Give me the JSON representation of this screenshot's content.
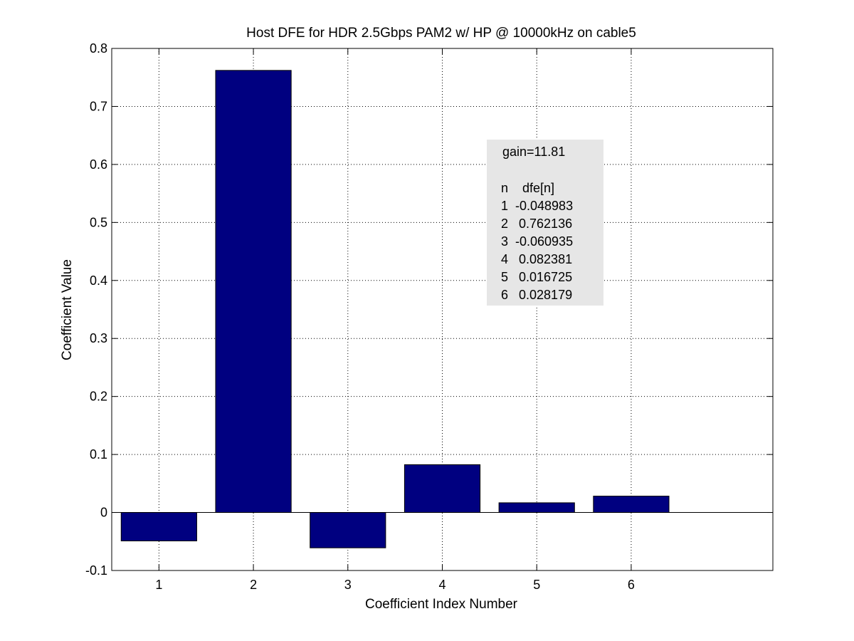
{
  "chart_data": {
    "type": "bar",
    "title": "Host DFE for HDR 2.5Gbps PAM2 w/ HP @ 10000kHz on cable5",
    "xlabel": "Coefficient Index Number",
    "ylabel": "Coefficient Value",
    "categories": [
      "1",
      "2",
      "3",
      "4",
      "5",
      "6"
    ],
    "values": [
      -0.048983,
      0.762136,
      -0.060935,
      0.082381,
      0.016725,
      0.028179
    ],
    "xlim": [
      0.5,
      7.5
    ],
    "ylim": [
      -0.1,
      0.8
    ],
    "yticks": [
      "-0.1",
      "0",
      "0.1",
      "0.2",
      "0.3",
      "0.4",
      "0.5",
      "0.6",
      "0.7",
      "0.8"
    ],
    "grid": true,
    "bar_color": "#000080",
    "annotation": {
      "background": "#e6e6e6",
      "gain_line": "gain=11.81",
      "header": "n    dfe[n]",
      "rows": [
        "1  -0.048983",
        "2   0.762136",
        "3  -0.060935",
        "4   0.082381",
        "5   0.016725",
        "6   0.028179"
      ]
    }
  }
}
